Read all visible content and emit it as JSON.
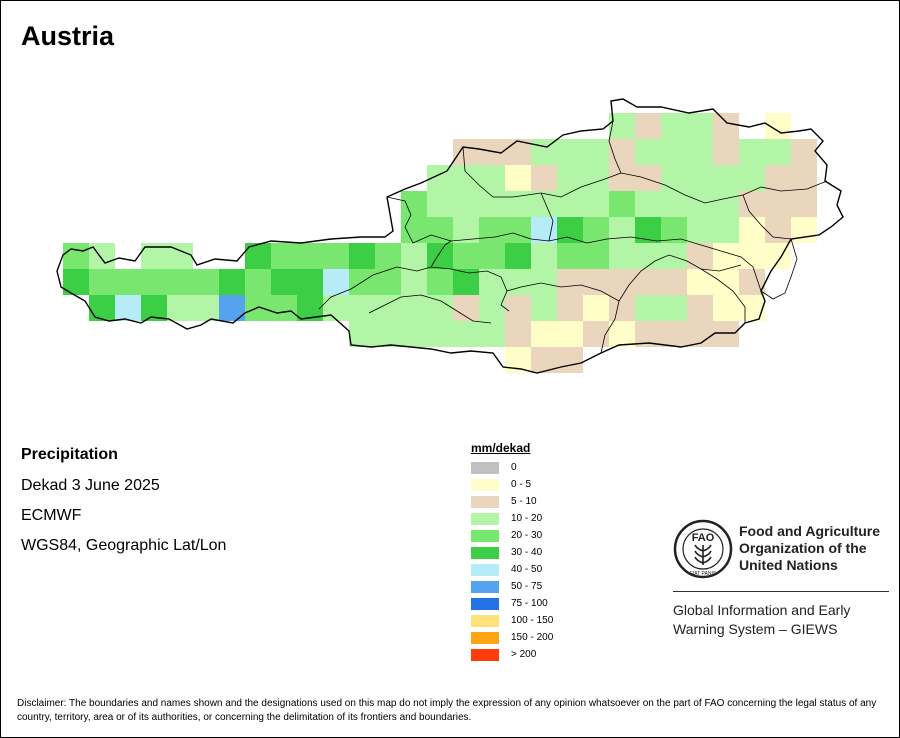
{
  "map": {
    "title": "Austria",
    "variable": "Precipitation",
    "period": "Dekad 3 June 2025",
    "source": "ECMWF",
    "projection": "WGS84, Geographic Lat/Lon"
  },
  "legend": {
    "title": "mm/dekad",
    "classes": [
      {
        "label": "0",
        "color": "#c0c0c0"
      },
      {
        "label": "0 - 5",
        "color": "#fffdc8"
      },
      {
        "label": "5 - 10",
        "color": "#ead6bc"
      },
      {
        "label": "10 - 20",
        "color": "#b3f5a7"
      },
      {
        "label": "20 - 30",
        "color": "#79e66f"
      },
      {
        "label": "30 - 40",
        "color": "#3cce44"
      },
      {
        "label": "40 - 50",
        "color": "#b6ecf7"
      },
      {
        "label": "50 - 75",
        "color": "#55a3ef"
      },
      {
        "label": "75 - 100",
        "color": "#2173e6"
      },
      {
        "label": "100 - 150",
        "color": "#fde27a"
      },
      {
        "label": "150 - 200",
        "color": "#fca414"
      },
      {
        "label": "> 200",
        "color": "#fe3c0c"
      }
    ]
  },
  "organization": {
    "name_lines": [
      "Food and Agriculture",
      "Organization of the",
      "United Nations"
    ],
    "system_lines": [
      "Global Information and Early",
      "Warning System – GIEWS"
    ],
    "logo_letters": "FAO",
    "logo_motto": "FIAT PANIS"
  },
  "disclaimer": "Disclaimer: The boundaries and names shown and the designations used on this map do not imply the expression of any opinion whatsoever on the part of FAO concerning the legal status of any country, territory, area or of its authorities, or concerning the delimitation of its frontiers and boundaries."
}
